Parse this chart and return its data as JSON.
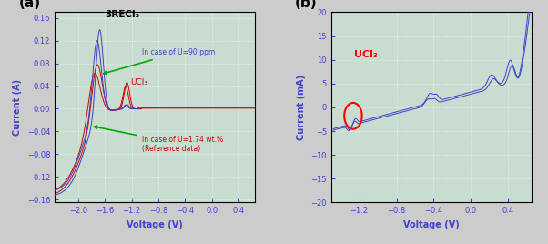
{
  "panel_a": {
    "xlabel": "Voltage (V)",
    "ylabel": "Current (A)",
    "xlim": [
      -2.35,
      0.65
    ],
    "ylim": [
      -0.165,
      0.17
    ],
    "xticks": [
      -2.0,
      -1.6,
      -1.2,
      -0.8,
      -0.4,
      0.0,
      0.4
    ],
    "yticks": [
      -0.16,
      -0.12,
      -0.08,
      -0.04,
      0.0,
      0.04,
      0.08,
      0.12,
      0.16
    ],
    "label_3RECl3": "3RECl₃",
    "label_UCl3": "UCl₃",
    "label_blue": "In case of U=90 ppm",
    "label_red1": "In case of U=1.74 wt.%",
    "label_red2": "(Reference data)",
    "color_blue": "#4040cc",
    "color_red": "#cc0000",
    "bg_color": "#c8ddd0"
  },
  "panel_b": {
    "xlabel": "Voltage (V)",
    "ylabel": "Current (mA)",
    "xlim": [
      -1.5,
      0.65
    ],
    "ylim": [
      -20,
      20
    ],
    "xticks": [
      -1.2,
      -0.8,
      -0.4,
      0.0,
      0.4
    ],
    "yticks": [
      -20,
      -15,
      -10,
      -5,
      0,
      5,
      10,
      15,
      20
    ],
    "label_UCl3": "UCl₃",
    "color_blue": "#4040cc",
    "bg_color": "#c8ddd0"
  },
  "fig_bg": "#cccccc",
  "panel_label_fontsize": 11,
  "axis_label_fontsize": 7,
  "tick_fontsize": 6
}
